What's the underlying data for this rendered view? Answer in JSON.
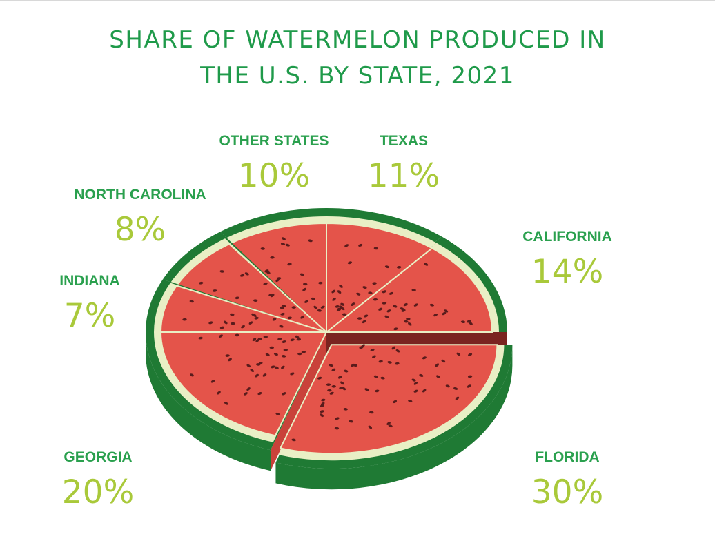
{
  "title": {
    "line1": "SHARE OF WATERMELON PRODUCED IN",
    "line2": "THE U.S. BY STATE, 2021"
  },
  "colors": {
    "title": "#1f9a4a",
    "label_name": "#2aa04e",
    "label_value": "#a9c93a",
    "rind": "#1f7a34",
    "pith": "#e9efc5",
    "flesh": "#e4544a",
    "seed": "#5a1c1c"
  },
  "chart_data": {
    "type": "pie",
    "title": "SHARE OF WATERMELON PRODUCED IN THE U.S. BY STATE, 2021",
    "unit": "%",
    "slices": [
      {
        "label": "FLORIDA",
        "value": 30,
        "display": "30%"
      },
      {
        "label": "GEORGIA",
        "value": 20,
        "display": "20%"
      },
      {
        "label": "INDIANA",
        "value": 7,
        "display": "7%"
      },
      {
        "label": "NORTH CAROLINA",
        "value": 8,
        "display": "8%"
      },
      {
        "label": "OTHER STATES",
        "value": 10,
        "display": "10%"
      },
      {
        "label": "TEXAS",
        "value": 11,
        "display": "11%"
      },
      {
        "label": "CALIFORNIA",
        "value": 14,
        "display": "14%"
      }
    ],
    "exploded_slice": "FLORIDA"
  }
}
